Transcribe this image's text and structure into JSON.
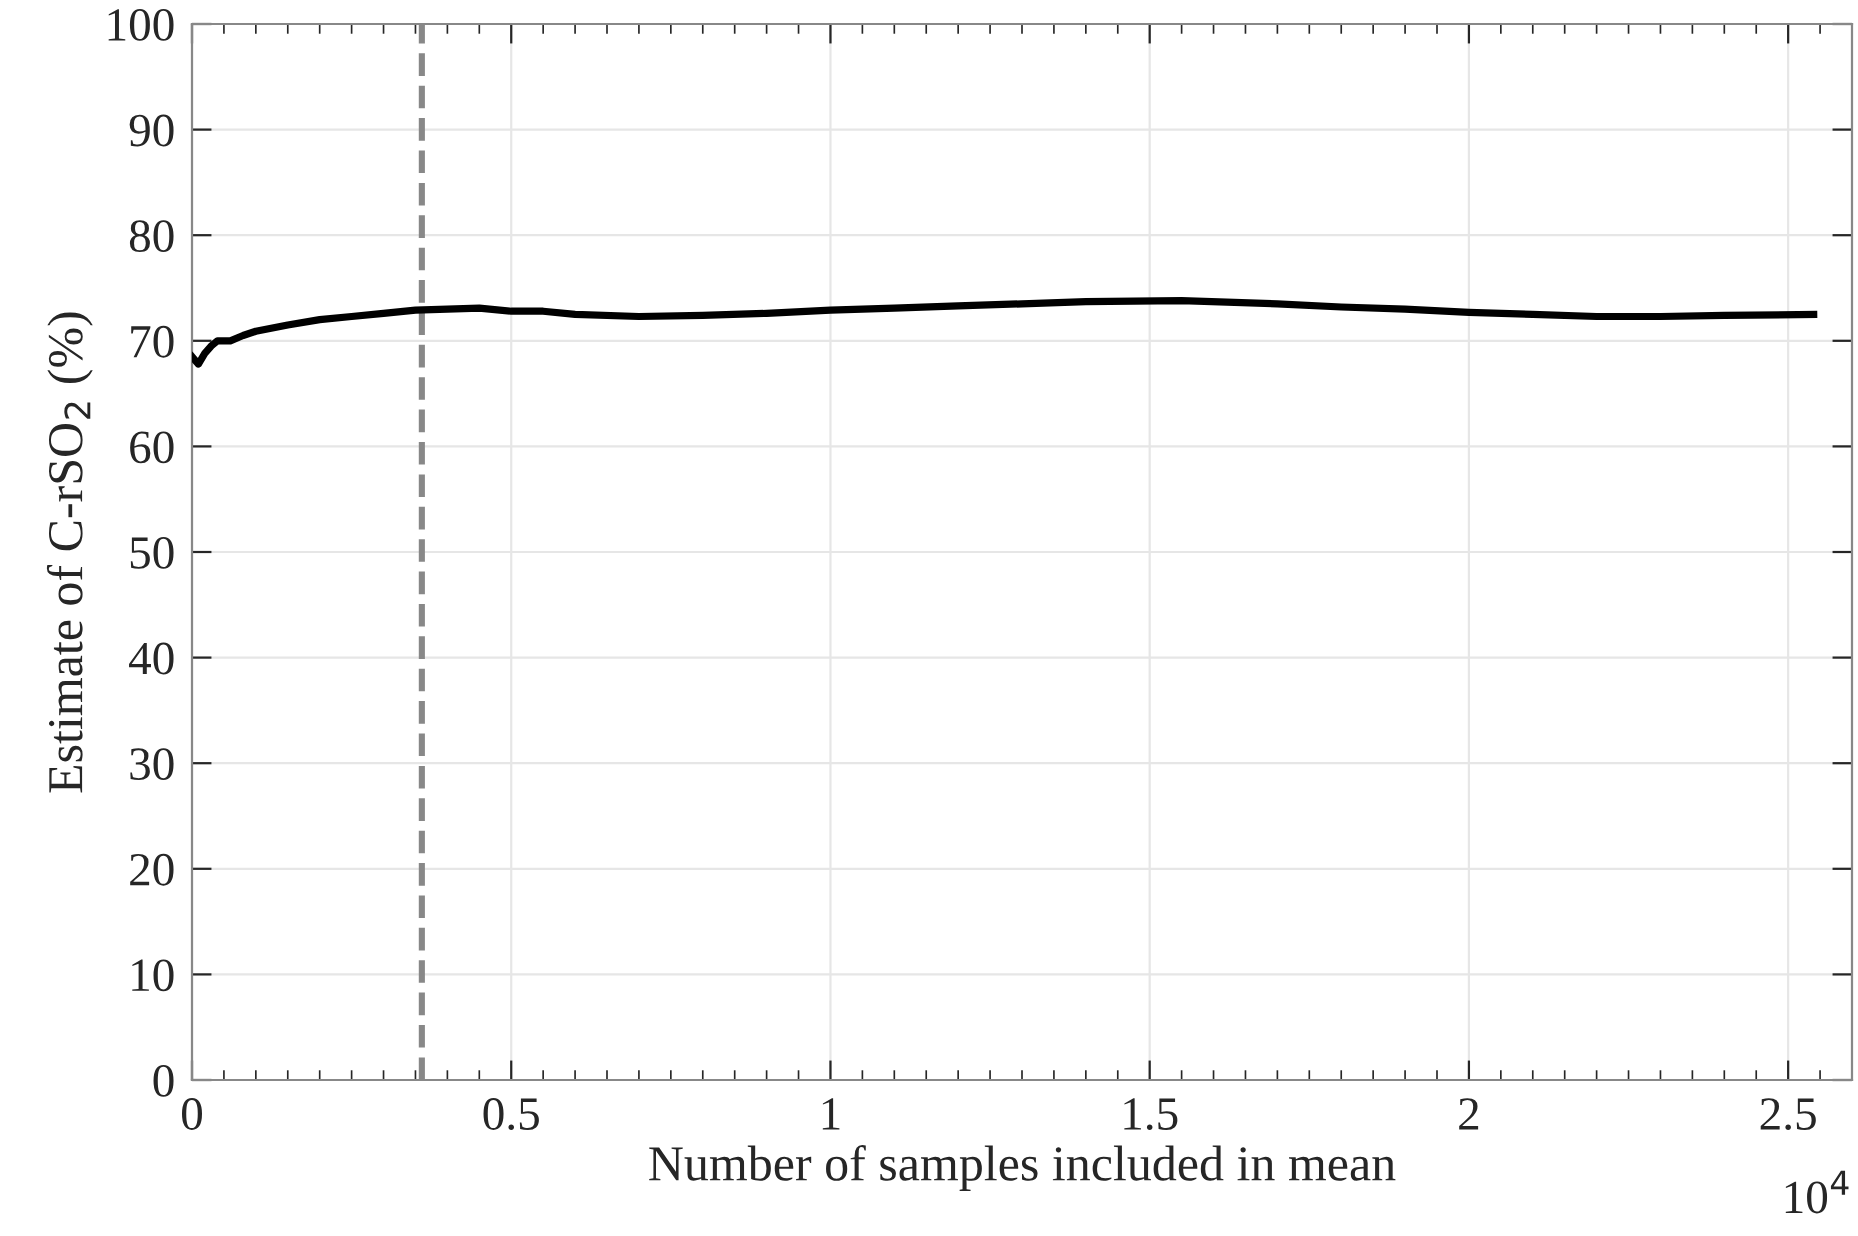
{
  "chart_data": {
    "type": "line",
    "xlabel": "Number of samples included in mean",
    "ylabel": "Estimate of C-rSO$_{2}$ (%)",
    "annotations": [
      "10$^{4}$"
    ],
    "x": [
      0,
      0.01,
      0.02,
      0.03,
      0.04,
      0.06,
      0.08,
      0.1,
      0.15,
      0.2,
      0.25,
      0.3,
      0.35,
      0.4,
      0.45,
      0.5,
      0.55,
      0.6,
      0.7,
      0.8,
      0.9,
      1.0,
      1.1,
      1.2,
      1.3,
      1.4,
      1.55,
      1.7,
      1.8,
      1.9,
      2.0,
      2.1,
      2.2,
      2.3,
      2.4,
      2.54
    ],
    "series": [
      {
        "color": "#000000",
        "values": [
          68.5,
          67.8,
          68.8,
          69.5,
          70.0,
          70.0,
          70.5,
          70.9,
          71.5,
          72.0,
          72.3,
          72.6,
          72.9,
          73.0,
          73.1,
          72.8,
          72.8,
          72.5,
          72.3,
          72.4,
          72.6,
          72.9,
          73.1,
          73.3,
          73.5,
          73.7,
          73.8,
          73.5,
          73.2,
          73.0,
          72.7,
          72.5,
          72.3,
          72.3,
          72.4,
          72.5
        ]
      }
    ],
    "xlim": [
      0,
      2.6
    ],
    "ylim": [
      0,
      100
    ],
    "xticks": [
      0,
      0.5,
      1,
      1.5,
      2,
      2.5
    ],
    "yticks": [
      0,
      10,
      20,
      30,
      40,
      50,
      60,
      70,
      80,
      90,
      100
    ],
    "ref_lines": [
      {
        "axis": "x",
        "value": 0.36,
        "color": "#888888",
        "line_style": "dashed"
      }
    ],
    "grid": true,
    "marker": "none",
    "line_style": "solid",
    "legend": false
  }
}
